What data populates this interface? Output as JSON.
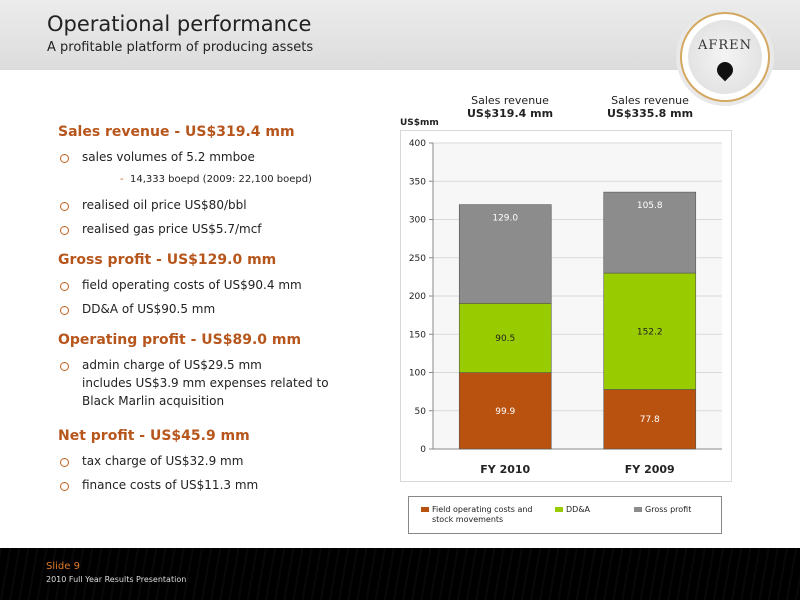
{
  "header": {
    "title": "Operational performance",
    "subtitle": "A profitable platform of producing assets",
    "logo_text": "AFREN"
  },
  "left": {
    "sections": [
      {
        "heading": "Sales revenue - US$319.4 mm",
        "bullets": [
          "sales volumes of 5.2 mmboe",
          "realised oil price US$80/bbl",
          "realised gas price US$5.7/mcf"
        ],
        "sub": "14,333 boepd (2009: 22,100 boepd)"
      },
      {
        "heading": "Gross profit - US$129.0 mm",
        "bullets": [
          "field operating costs of US$90.4 mm",
          "DD&A of US$90.5 mm"
        ]
      },
      {
        "heading": "Operating profit - US$89.0 mm",
        "bullets": [
          "admin charge of US$29.5 mm"
        ],
        "continuation": [
          "includes US$3.9 mm expenses related to",
          "Black Marlin acquisition"
        ]
      },
      {
        "heading": "Net profit - US$45.9 mm",
        "bullets": [
          "tax charge of US$32.9 mm",
          "finance costs of US$11.3 mm"
        ]
      }
    ]
  },
  "chart_headers": [
    {
      "label": "Sales revenue",
      "value": "US$319.4 mm"
    },
    {
      "label": "Sales revenue",
      "value": "US$335.8 mm"
    }
  ],
  "chart_data": {
    "type": "bar",
    "stacked": true,
    "ylabel": "US$mm",
    "ylim": [
      0,
      400
    ],
    "yticks": [
      0,
      50,
      100,
      150,
      200,
      250,
      300,
      350,
      400
    ],
    "categories": [
      "FY 2010",
      "FY 2009"
    ],
    "series": [
      {
        "name": "Field operating costs and stock movements",
        "values": [
          99.9,
          77.8
        ],
        "labels": [
          "99.9",
          "77.8"
        ],
        "color": "#b9520f"
      },
      {
        "name": "DD&A",
        "values": [
          90.5,
          152.2
        ],
        "labels": [
          "90.5",
          "152.2"
        ],
        "color": "#99cc00"
      },
      {
        "name": "Gross profit",
        "values": [
          129.0,
          105.8
        ],
        "labels": [
          "129.0",
          "105.8"
        ],
        "color": "#8c8c8c"
      }
    ],
    "grid": true,
    "legend_position": "bottom"
  },
  "legend": [
    {
      "label": "Field operating costs and stock movements",
      "color": "#b9520f"
    },
    {
      "label": "DD&A",
      "color": "#99cc00"
    },
    {
      "label": "Gross profit",
      "color": "#8c8c8c"
    }
  ],
  "footer": {
    "slide": "Slide 9",
    "presentation": "2010 Full Year Results Presentation"
  }
}
